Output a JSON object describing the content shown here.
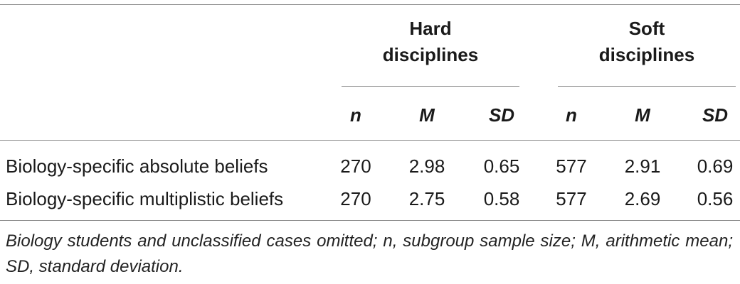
{
  "table": {
    "groups": [
      {
        "label_line1": "Hard",
        "label_line2": "disciplines"
      },
      {
        "label_line1": "Soft",
        "label_line2": "disciplines"
      }
    ],
    "subheaders": [
      "n",
      "M",
      "SD",
      "n",
      "M",
      "SD"
    ],
    "rows": [
      {
        "label": "Biology-specific absolute beliefs",
        "cells": [
          "270",
          "2.98",
          "0.65",
          "577",
          "2.91",
          "0.69"
        ]
      },
      {
        "label": "Biology-specific multiplistic beliefs",
        "cells": [
          "270",
          "2.75",
          "0.58",
          "577",
          "2.69",
          "0.56"
        ]
      }
    ],
    "footnote": "Biology students and unclassified cases omitted; n, subgroup sample size; M, arithmetic mean; SD, standard deviation."
  }
}
